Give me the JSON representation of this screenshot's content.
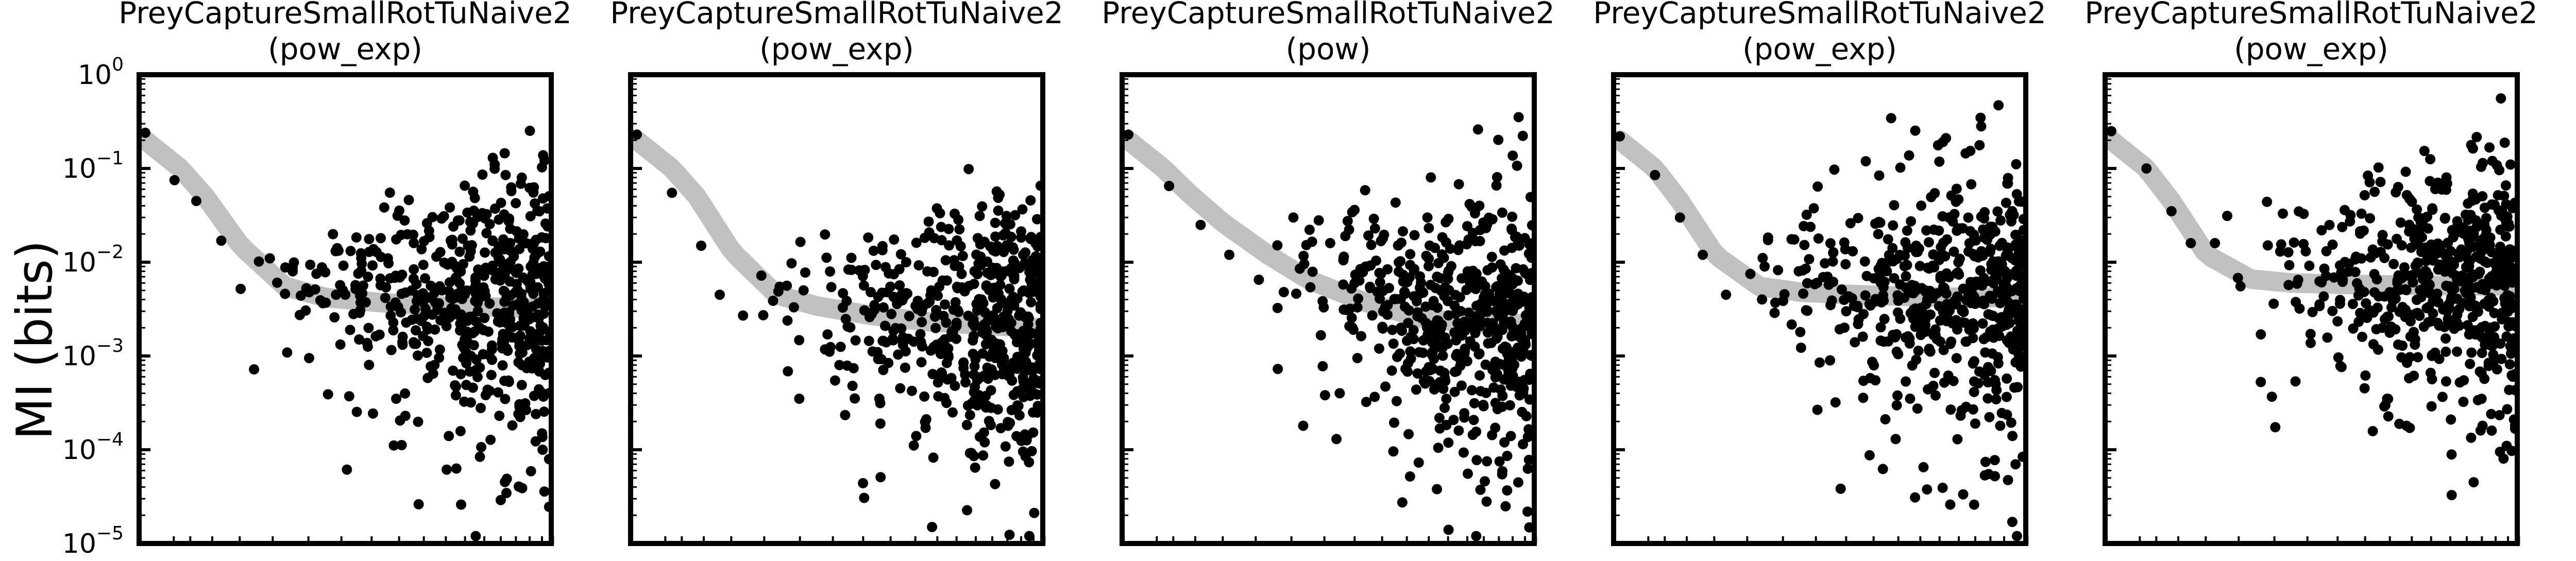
{
  "figure": {
    "ylabel": "MI (bits)"
  },
  "style": {
    "point_color": "#000000",
    "fit_color": "#c0c0c0",
    "axis_color": "#000000",
    "background": "#ffffff"
  },
  "chart_data": [
    {
      "type": "scatter",
      "title": "PreyCaptureSmallRotTuNaive2",
      "subtitle": "(pow_exp)",
      "yscale": "log",
      "xscale": "log",
      "ylim": [
        1e-05,
        1
      ],
      "y_ticks": [
        {
          "base": "10",
          "exp": "0",
          "value": 1
        },
        {
          "base": "10",
          "exp": "−1",
          "value": 0.1
        },
        {
          "base": "10",
          "exp": "−2",
          "value": 0.01
        },
        {
          "base": "10",
          "exp": "−3",
          "value": 0.001
        },
        {
          "base": "10",
          "exp": "−4",
          "value": 0.0001
        },
        {
          "base": "10",
          "exp": "−5",
          "value": 1e-05
        }
      ],
      "fit_curve": {
        "x": [
          1,
          1.5,
          2,
          3,
          5,
          8,
          15,
          30,
          60,
          100
        ],
        "y": [
          0.2,
          0.1,
          0.05,
          0.015,
          0.0055,
          0.0042,
          0.0037,
          0.0034,
          0.0033,
          0.0032
        ]
      },
      "points": [
        {
          "x": 1.0,
          "y": 0.24
        },
        {
          "x": 1.4,
          "y": 0.075
        },
        {
          "x": 1.8,
          "y": 0.045
        },
        {
          "x": 2.4,
          "y": 0.017
        },
        {
          "x": 3.0,
          "y": 0.0052
        },
        {
          "x": 3.5,
          "y": 0.00072
        },
        {
          "x": 4.2,
          "y": 0.011
        },
        {
          "x": 5.0,
          "y": 0.0046
        },
        {
          "x": 6.0,
          "y": 0.0044
        },
        {
          "x": 6.6,
          "y": 0.00095
        },
        {
          "x": 8.0,
          "y": 0.0037
        },
        {
          "x": 9.0,
          "y": 0.0045
        },
        {
          "x": 11.0,
          "y": 0.0028
        },
        {
          "x": 13.0,
          "y": 0.007
        },
        {
          "x": 16.0,
          "y": 0.0054
        },
        {
          "x": 18.0,
          "y": 0.00035
        },
        {
          "x": 20.0,
          "y": 0.00023
        },
        {
          "x": 22.0,
          "y": 0.0014
        },
        {
          "x": 30.0,
          "y": 0.0024
        },
        {
          "x": 33.0,
          "y": 0.00014
        },
        {
          "x": 36.0,
          "y": 6.3e-05
        },
        {
          "x": 38.0,
          "y": 2.6e-05
        },
        {
          "x": 45.0,
          "y": 1.2e-05
        },
        {
          "x": 60.0,
          "y": 2.9e-05
        },
        {
          "x": 66.0,
          "y": 0.00053
        },
        {
          "x": 75.0,
          "y": 0.0021
        },
        {
          "x": 85.0,
          "y": 5.9e-05
        },
        {
          "x": 90.0,
          "y": 0.00024
        },
        {
          "x": 95.0,
          "y": 0.0021
        }
      ]
    },
    {
      "type": "scatter",
      "title": "PreyCaptureSmallRotTuNaive2",
      "subtitle": "(pow_exp)",
      "yscale": "log",
      "xscale": "log",
      "ylim": [
        1e-05,
        1
      ],
      "fit_curve": {
        "x": [
          1,
          1.5,
          2,
          3,
          5,
          8,
          15,
          30,
          60,
          100
        ],
        "y": [
          0.2,
          0.1,
          0.05,
          0.013,
          0.0045,
          0.0034,
          0.0027,
          0.0023,
          0.0021,
          0.002
        ]
      },
      "points": [
        {
          "x": 1.0,
          "y": 0.23
        },
        {
          "x": 1.5,
          "y": 0.055
        },
        {
          "x": 2.1,
          "y": 0.015
        },
        {
          "x": 2.6,
          "y": 0.0045
        },
        {
          "x": 3.4,
          "y": 0.0027
        },
        {
          "x": 4.2,
          "y": 0.0072
        },
        {
          "x": 6.5,
          "y": 0.00035
        },
        {
          "x": 9.0,
          "y": 0.0017
        },
        {
          "x": 12.0,
          "y": 0.00048
        },
        {
          "x": 16.0,
          "y": 0.0011
        },
        {
          "x": 22.0,
          "y": 0.00075
        },
        {
          "x": 25.0,
          "y": 0.00014
        },
        {
          "x": 30.0,
          "y": 1.5e-05
        },
        {
          "x": 38.0,
          "y": 0.00025
        },
        {
          "x": 48.0,
          "y": 0.0022
        },
        {
          "x": 55.0,
          "y": 0.00012
        },
        {
          "x": 62.0,
          "y": 4.3e-05
        },
        {
          "x": 72.0,
          "y": 0.00018
        },
        {
          "x": 80.0,
          "y": 0.0009
        },
        {
          "x": 88.0,
          "y": 8.5e-05
        },
        {
          "x": 92.0,
          "y": 1.2e-05
        },
        {
          "x": 96.0,
          "y": 0.00025
        }
      ]
    },
    {
      "type": "scatter",
      "title": "PreyCaptureSmallRotTuNaive2",
      "subtitle": "(pow)",
      "yscale": "log",
      "xscale": "log",
      "ylim": [
        1e-05,
        1
      ],
      "fit_curve": {
        "x": [
          1,
          1.5,
          2,
          3,
          5,
          8,
          15,
          30,
          60,
          100
        ],
        "y": [
          0.2,
          0.1,
          0.055,
          0.026,
          0.012,
          0.0065,
          0.0038,
          0.0025,
          0.0022,
          0.0022
        ]
      },
      "points": [
        {
          "x": 1.0,
          "y": 0.23
        },
        {
          "x": 1.6,
          "y": 0.065
        },
        {
          "x": 2.3,
          "y": 0.025
        },
        {
          "x": 3.2,
          "y": 0.012
        },
        {
          "x": 4.5,
          "y": 0.0065
        },
        {
          "x": 6.0,
          "y": 0.0048
        },
        {
          "x": 7.5,
          "y": 0.00018
        },
        {
          "x": 9.5,
          "y": 0.0033
        },
        {
          "x": 11.0,
          "y": 0.00013
        },
        {
          "x": 14.0,
          "y": 0.00095
        },
        {
          "x": 18.0,
          "y": 0.0012
        },
        {
          "x": 22.0,
          "y": 0.00033
        },
        {
          "x": 28.0,
          "y": 0.00065
        },
        {
          "x": 35.0,
          "y": 3.8e-05
        },
        {
          "x": 40.0,
          "y": 1.4e-05
        },
        {
          "x": 45.0,
          "y": 0.00016
        },
        {
          "x": 55.0,
          "y": 1.2e-05
        },
        {
          "x": 62.0,
          "y": 2.8e-05
        },
        {
          "x": 72.0,
          "y": 7.5e-05
        },
        {
          "x": 82.0,
          "y": 0.00014
        },
        {
          "x": 95.0,
          "y": 0.00045
        }
      ]
    },
    {
      "type": "scatter",
      "title": "PreyCaptureSmallRotTuNaive2",
      "subtitle": "(pow_exp)",
      "yscale": "log",
      "xscale": "log",
      "ylim": [
        1e-05,
        1
      ],
      "fit_curve": {
        "x": [
          1,
          1.5,
          2,
          3,
          5,
          8,
          15,
          30,
          60,
          100
        ],
        "y": [
          0.2,
          0.1,
          0.045,
          0.012,
          0.0055,
          0.0048,
          0.0045,
          0.0043,
          0.0042,
          0.0042
        ]
      },
      "points": [
        {
          "x": 1.0,
          "y": 0.22
        },
        {
          "x": 1.5,
          "y": 0.085
        },
        {
          "x": 2.0,
          "y": 0.03
        },
        {
          "x": 2.6,
          "y": 0.012
        },
        {
          "x": 3.4,
          "y": 0.0045
        },
        {
          "x": 4.5,
          "y": 0.0075
        },
        {
          "x": 6.0,
          "y": 0.0037
        },
        {
          "x": 8.0,
          "y": 0.0018
        },
        {
          "x": 10.0,
          "y": 0.00085
        },
        {
          "x": 12.0,
          "y": 0.00032
        },
        {
          "x": 15.0,
          "y": 0.0014
        },
        {
          "x": 19.0,
          "y": 0.00055
        },
        {
          "x": 24.0,
          "y": 0.00013
        },
        {
          "x": 30.0,
          "y": 3.1e-05
        },
        {
          "x": 37.0,
          "y": 0.00048
        },
        {
          "x": 45.0,
          "y": 2.6e-05
        },
        {
          "x": 52.0,
          "y": 0.023
        },
        {
          "x": 60.0,
          "y": 0.00019
        },
        {
          "x": 70.0,
          "y": 5.5e-05
        },
        {
          "x": 80.0,
          "y": 0.00018
        },
        {
          "x": 92.0,
          "y": 1.7e-05
        },
        {
          "x": 97.0,
          "y": 1.2e-05
        }
      ]
    },
    {
      "type": "scatter",
      "title": "PreyCaptureSmallRotTuNaive2",
      "subtitle": "(pow_exp)",
      "yscale": "log",
      "xscale": "log",
      "ylim": [
        1e-05,
        1
      ],
      "fit_curve": {
        "x": [
          1,
          1.5,
          2,
          3,
          5,
          8,
          15,
          30,
          60,
          100
        ],
        "y": [
          0.2,
          0.1,
          0.045,
          0.012,
          0.0066,
          0.006,
          0.0058,
          0.0057,
          0.0056,
          0.0056
        ]
      },
      "points": [
        {
          "x": 1.0,
          "y": 0.25
        },
        {
          "x": 1.5,
          "y": 0.1
        },
        {
          "x": 2.0,
          "y": 0.035
        },
        {
          "x": 2.5,
          "y": 0.016
        },
        {
          "x": 3.3,
          "y": 0.016
        },
        {
          "x": 4.3,
          "y": 0.0068
        },
        {
          "x": 5.6,
          "y": 0.0017
        },
        {
          "x": 7.0,
          "y": 0.013
        },
        {
          "x": 8.5,
          "y": 0.0059
        },
        {
          "x": 11.0,
          "y": 0.0034
        },
        {
          "x": 14.0,
          "y": 0.00078
        },
        {
          "x": 18.0,
          "y": 0.0016
        },
        {
          "x": 24.0,
          "y": 0.00035
        },
        {
          "x": 30.0,
          "y": 0.00018
        },
        {
          "x": 40.0,
          "y": 0.00029
        },
        {
          "x": 50.0,
          "y": 0.00021
        },
        {
          "x": 58.0,
          "y": 0.00055
        },
        {
          "x": 65.0,
          "y": 4.5e-05
        },
        {
          "x": 72.0,
          "y": 0.00018
        },
        {
          "x": 80.0,
          "y": 0.00016
        },
        {
          "x": 88.0,
          "y": 9.5e-05
        },
        {
          "x": 95.0,
          "y": 0.00011
        },
        {
          "x": 98.0,
          "y": 0.024
        }
      ]
    }
  ]
}
